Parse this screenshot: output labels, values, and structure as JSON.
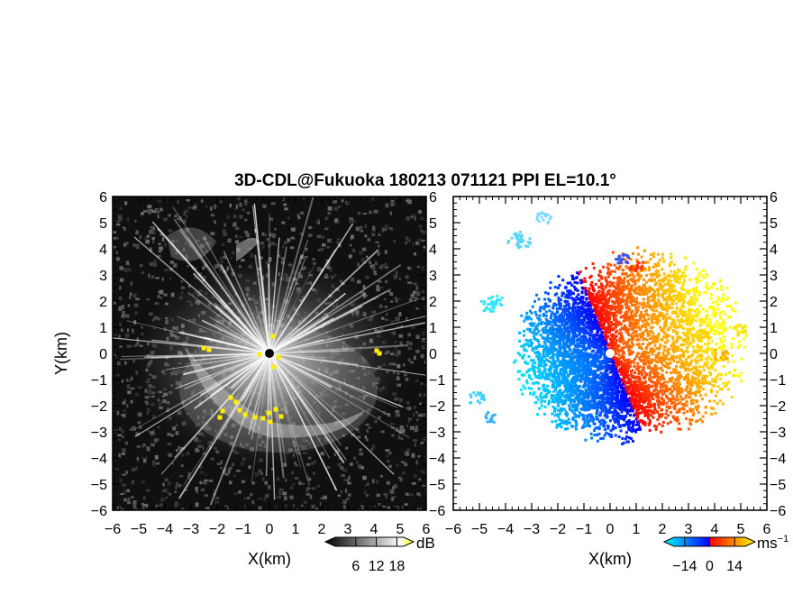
{
  "chart_data": [
    {
      "type": "heatmap",
      "title": "3D-CDL@Fukuoka 180213 071121 PPI EL=10.1°",
      "panel": "reflectivity",
      "xlabel": "X(km)",
      "ylabel": "Y(km)",
      "xlim": [
        -6,
        6
      ],
      "ylim": [
        -6,
        6
      ],
      "x_ticks": [
        -6,
        -5,
        -4,
        -3,
        -2,
        -1,
        0,
        1,
        2,
        3,
        4,
        5,
        6
      ],
      "y_ticks": [
        -6,
        -5,
        -4,
        -3,
        -2,
        -1,
        0,
        1,
        2,
        3,
        4,
        5,
        6
      ],
      "x_tick_labels": [
        "−6",
        "−5",
        "−4",
        "−3",
        "−2",
        "−1",
        "0",
        "1",
        "2",
        "3",
        "4",
        "5",
        "6"
      ],
      "y_tick_labels": [
        "6",
        "5",
        "4",
        "3",
        "2",
        "1",
        "0",
        "−1",
        "−2",
        "−3",
        "−4",
        "−5",
        "−6"
      ],
      "colorbar": {
        "unit": "dB",
        "ticks": [
          6,
          12,
          18
        ],
        "tick_labels": [
          "6",
          "12",
          "18"
        ],
        "colors": [
          "#000000",
          "#ffffff",
          "#ffff00"
        ]
      }
    },
    {
      "type": "heatmap",
      "panel": "velocity",
      "xlabel": "X(km)",
      "xlim": [
        -6,
        6
      ],
      "ylim": [
        -6,
        6
      ],
      "x_ticks": [
        -6,
        -5,
        -4,
        -3,
        -2,
        -1,
        0,
        1,
        2,
        3,
        4,
        5,
        6
      ],
      "y_ticks": [
        -6,
        -5,
        -4,
        -3,
        -2,
        -1,
        0,
        1,
        2,
        3,
        4,
        5,
        6
      ],
      "x_tick_labels": [
        "−6",
        "−5",
        "−4",
        "−3",
        "−2",
        "−1",
        "0",
        "1",
        "2",
        "3",
        "4",
        "5",
        "6"
      ],
      "y_tick_labels": [
        "6",
        "5",
        "4",
        "3",
        "2",
        "1",
        "0",
        "−1",
        "−2",
        "−3",
        "−4",
        "−5",
        "−6"
      ],
      "colorbar": {
        "unit": "ms",
        "unit_exp": "−1",
        "ticks": [
          -14,
          0,
          14
        ],
        "tick_labels": [
          "−14",
          "0",
          "14"
        ],
        "colors": [
          "#00ffff",
          "#0000ff",
          "#ff0000",
          "#ffff00"
        ]
      }
    }
  ]
}
